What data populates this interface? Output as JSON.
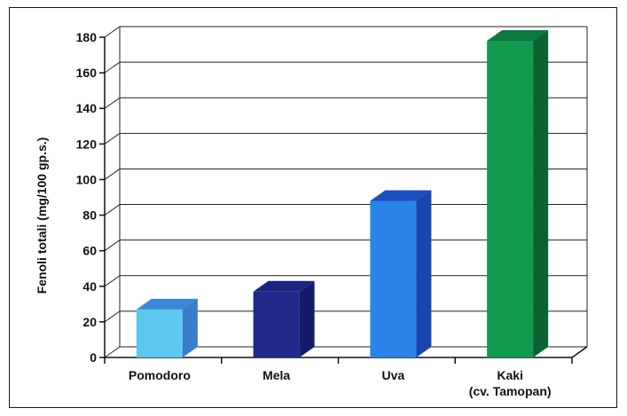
{
  "chart_data": {
    "type": "bar",
    "title": "",
    "xlabel": "",
    "ylabel": "Fenoli totali (mg/100 gp.s.)",
    "ylim": [
      0,
      180
    ],
    "yticks": [
      0,
      20,
      40,
      60,
      80,
      100,
      120,
      140,
      160,
      180
    ],
    "categories": [
      "Pomodoro",
      "Mela",
      "Uva",
      "Kaki (cv. Tamopan)"
    ],
    "category_lines": [
      [
        "Pomodoro"
      ],
      [
        "Mela"
      ],
      [
        "Uva"
      ],
      [
        "Kaki",
        "(cv. Tamopan)"
      ]
    ],
    "values": [
      27,
      37,
      88,
      178
    ],
    "grid": true,
    "style": "3d",
    "colors": {
      "front": [
        "#5bc8ee",
        "#1f2a8c",
        "#2a84ea",
        "#0f9a50"
      ],
      "top": [
        "#3b88d6",
        "#1b2480",
        "#1e4fc0",
        "#0b7a3c"
      ],
      "side": [
        "#3a7ccc",
        "#141c6a",
        "#1a45ad",
        "#0a6432"
      ]
    }
  }
}
